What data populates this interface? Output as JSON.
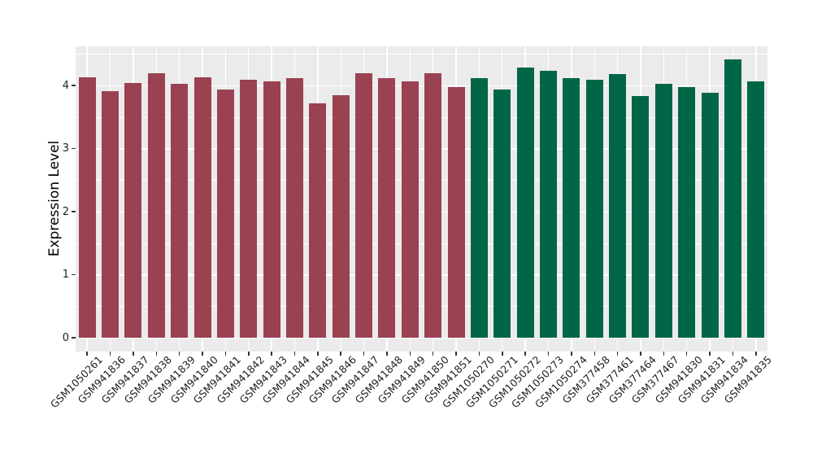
{
  "chart_data": {
    "type": "bar",
    "title": "",
    "xlabel": "",
    "ylabel": "Expression Level",
    "legend": "none",
    "grid": "on",
    "panel_background": "#EBEBEB",
    "grid_color": "#FFFFFF",
    "tick_color": "#333333",
    "ylim": [
      -0.22,
      4.63
    ],
    "yticks": [
      0,
      1,
      2,
      3,
      4
    ],
    "ytick_labels": [
      "0",
      "1",
      "2",
      "3",
      "4"
    ],
    "minor_yticks": [
      0.5,
      1.5,
      2.5,
      3.5,
      4.5
    ],
    "categories": [
      "GSM1050261",
      "GSM941836",
      "GSM941837",
      "GSM941838",
      "GSM941839",
      "GSM941840",
      "GSM941841",
      "GSM941842",
      "GSM941843",
      "GSM941844",
      "GSM941845",
      "GSM941846",
      "GSM941847",
      "GSM941848",
      "GSM941849",
      "GSM941850",
      "GSM941851",
      "GSM1050270",
      "GSM1050271",
      "GSM1050272",
      "GSM1050273",
      "GSM1050274",
      "GSM377458",
      "GSM377461",
      "GSM377464",
      "GSM377467",
      "GSM941830",
      "GSM941831",
      "GSM941834",
      "GSM941835"
    ],
    "values": [
      4.13,
      3.91,
      4.04,
      4.2,
      4.03,
      4.13,
      3.94,
      4.09,
      4.06,
      4.12,
      3.71,
      3.85,
      4.19,
      4.12,
      4.06,
      4.2,
      3.97,
      4.12,
      3.94,
      4.28,
      4.23,
      4.12,
      4.09,
      4.18,
      3.83,
      4.02,
      3.98,
      3.89,
      4.41,
      4.06
    ],
    "bar_groups": [
      "group1",
      "group1",
      "group1",
      "group1",
      "group1",
      "group1",
      "group1",
      "group1",
      "group1",
      "group1",
      "group1",
      "group1",
      "group1",
      "group1",
      "group1",
      "group1",
      "group1",
      "group2",
      "group2",
      "group2",
      "group2",
      "group2",
      "group2",
      "group2",
      "group2",
      "group2",
      "group2",
      "group2",
      "group2",
      "group2"
    ],
    "group_colors": {
      "group1": "#9A4252",
      "group2": "#006647"
    }
  }
}
